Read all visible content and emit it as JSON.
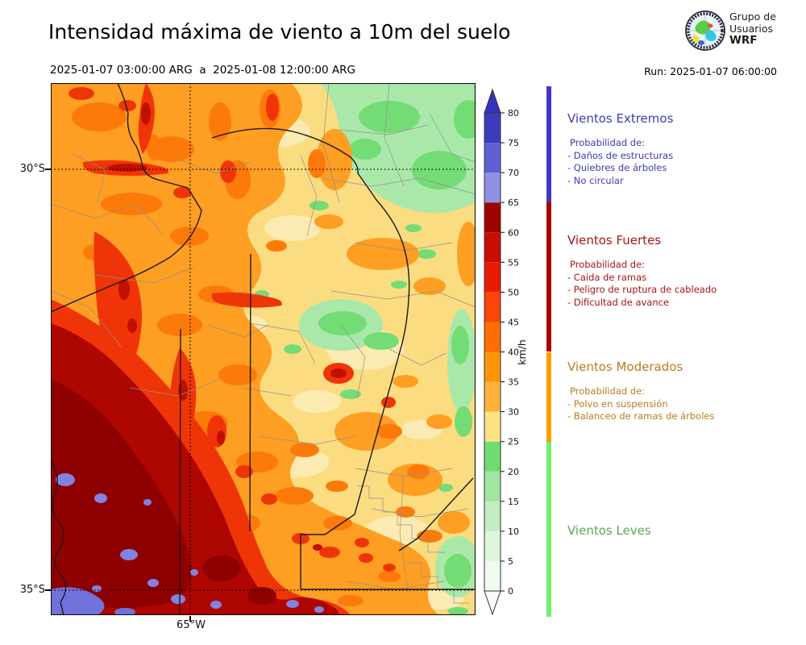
{
  "header": {
    "title": "Intensidad máxima de viento a 10m del suelo",
    "period": "2025-01-07 03:00:00 ARG  a  2025-01-08 12:00:00 ARG",
    "run_label": "Run: 2025-01-07 06:00:00",
    "logo": {
      "lines": [
        "Grupo de",
        "Usuarios",
        "WRF"
      ]
    }
  },
  "map": {
    "lat_labels": [
      "30°S",
      "35°S"
    ],
    "lon_label": "65°W"
  },
  "colorbar": {
    "unit": "km/h",
    "tick_levels": [
      0,
      5,
      10,
      15,
      20,
      25,
      30,
      35,
      40,
      45,
      50,
      55,
      60,
      65,
      70,
      75,
      80
    ],
    "segments": [
      {
        "from": 0,
        "to": 5,
        "color": "#F0FAEF"
      },
      {
        "from": 5,
        "to": 10,
        "color": "#DCF5DB"
      },
      {
        "from": 10,
        "to": 15,
        "color": "#C2EEC1"
      },
      {
        "from": 15,
        "to": 20,
        "color": "#A0E5A0"
      },
      {
        "from": 20,
        "to": 25,
        "color": "#70DB70"
      },
      {
        "from": 25,
        "to": 30,
        "color": "#FDE283"
      },
      {
        "from": 30,
        "to": 35,
        "color": "#FEB23C"
      },
      {
        "from": 35,
        "to": 40,
        "color": "#FD9507"
      },
      {
        "from": 40,
        "to": 45,
        "color": "#FD6D00"
      },
      {
        "from": 45,
        "to": 50,
        "color": "#F94508"
      },
      {
        "from": 50,
        "to": 55,
        "color": "#EA1C00"
      },
      {
        "from": 55,
        "to": 60,
        "color": "#C90D00"
      },
      {
        "from": 60,
        "to": 65,
        "color": "#A00300"
      },
      {
        "from": 65,
        "to": 70,
        "color": "#8F8FE4"
      },
      {
        "from": 70,
        "to": 75,
        "color": "#5F5FD3"
      },
      {
        "from": 75,
        "to": 80,
        "color": "#3B3BBE"
      }
    ],
    "over_color": "#3434B9",
    "under_color": "#F6FCF5"
  },
  "legend": {
    "sections": [
      {
        "title": "Vientos Extremos",
        "color": "#3C3CB4",
        "bar_color": "#4236C6",
        "range_kmh": [
          65,
          null
        ],
        "intro": "Probabilidad de:",
        "items": [
          "- Daños de estructuras",
          "- Quiebres de árboles",
          "- No circular"
        ]
      },
      {
        "title": "Vientos Fuertes",
        "color": "#A81414",
        "bar_color": "#AA0000",
        "range_kmh": [
          40,
          65
        ],
        "intro": "Probabilidad de:",
        "items": [
          "- Caida de ramas",
          "- Peligro de ruptura de cableado",
          "- Dificultad de avance"
        ]
      },
      {
        "title": "Vientos Moderados",
        "color": "#B87D1E",
        "bar_color": "#FE9C00",
        "range_kmh": [
          25,
          40
        ],
        "intro": "Probabilidad de:",
        "items": [
          "- Polvo en suspensión",
          "- Balanceo de ramas de árboles"
        ]
      },
      {
        "title": "Vientos Leves",
        "color": "#5AA85A",
        "bar_color": "#6EF06E",
        "range_kmh": [
          null,
          25
        ],
        "intro": "",
        "items": []
      }
    ]
  }
}
